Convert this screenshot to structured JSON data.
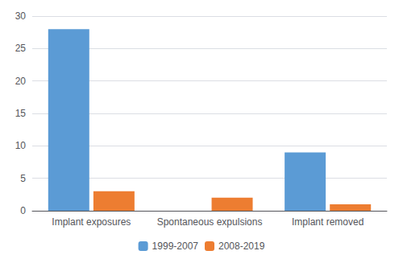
{
  "chart_data": {
    "type": "bar",
    "categories": [
      "Implant exposures",
      "Spontaneous expulsions",
      "Implant removed"
    ],
    "series": [
      {
        "name": "1999-2007",
        "color": "#5B9BD5",
        "values": [
          28,
          0,
          9
        ]
      },
      {
        "name": "2008-2019",
        "color": "#ED7D31",
        "values": [
          3,
          2,
          1
        ]
      }
    ],
    "ylim": [
      0,
      30
    ],
    "yticks": [
      0,
      5,
      10,
      15,
      20,
      25,
      30
    ],
    "grid": true,
    "legend": "bottom"
  }
}
